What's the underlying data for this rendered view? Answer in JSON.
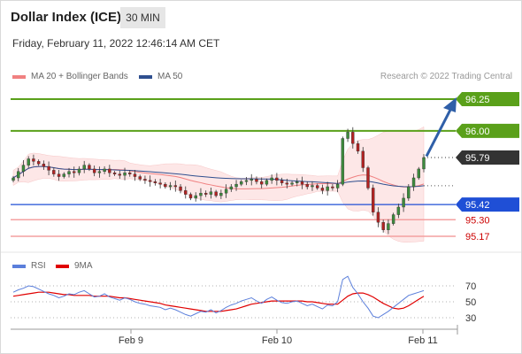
{
  "header": {
    "title": "Dollar Index (ICE)",
    "timeframe": "30 MIN",
    "datetime": "Friday, February 11, 2022 12:46:14 AM CET",
    "copyright": "Research © 2022 Trading Central"
  },
  "legend": {
    "ma20": {
      "label": "MA 20 + Bollinger Bands",
      "color": "#f08080"
    },
    "ma50": {
      "label": "MA 50",
      "color": "#2f4f8f"
    },
    "rsi": {
      "label": "RSI",
      "color": "#5b7fdb"
    },
    "rsi_ma": {
      "label": "9MA",
      "color": "#e00000"
    }
  },
  "chart_data": [
    {
      "type": "candlestick",
      "ylim": [
        95.1,
        96.32
      ],
      "current_price": {
        "value": "95.79",
        "color": "#333333"
      },
      "levels": [
        {
          "value": 96.25,
          "label": "96.25",
          "kind": "target",
          "color": "#5aa01a"
        },
        {
          "value": 96.0,
          "label": "96.00",
          "kind": "resistance",
          "color": "#5aa01a"
        },
        {
          "value": 95.42,
          "label": "95.42",
          "kind": "pivot",
          "color": "#1f4fd6"
        },
        {
          "value": 95.3,
          "label": "95.30",
          "kind": "support",
          "color": "#f4a0a0",
          "text_color": "#cc0000"
        },
        {
          "value": 95.17,
          "label": "95.17",
          "kind": "support",
          "color": "#f4a0a0",
          "text_color": "#cc0000"
        }
      ],
      "x_labels": [
        "Feb 9",
        "Feb 10",
        "Feb 11"
      ],
      "arrow": {
        "from": 95.8,
        "to": 96.25,
        "color": "#2f5fa8"
      },
      "close": [
        95.63,
        95.68,
        95.73,
        95.78,
        95.76,
        95.74,
        95.72,
        95.69,
        95.66,
        95.64,
        95.66,
        95.68,
        95.67,
        95.7,
        95.73,
        95.7,
        95.67,
        95.68,
        95.7,
        95.67,
        95.66,
        95.65,
        95.67,
        95.66,
        95.64,
        95.62,
        95.61,
        95.6,
        95.59,
        95.58,
        95.56,
        95.57,
        95.56,
        95.53,
        95.5,
        95.47,
        95.49,
        95.51,
        95.5,
        95.52,
        95.49,
        95.51,
        95.54,
        95.56,
        95.58,
        95.6,
        95.61,
        95.62,
        95.6,
        95.58,
        95.61,
        95.63,
        95.61,
        95.59,
        95.58,
        95.59,
        95.6,
        95.58,
        95.56,
        95.57,
        95.55,
        95.53,
        95.56,
        95.55,
        95.58,
        95.94,
        95.99,
        95.9,
        95.84,
        95.71,
        95.55,
        95.36,
        95.28,
        95.22,
        95.27,
        95.34,
        95.4,
        95.47,
        95.56,
        95.63,
        95.7,
        95.79
      ]
    },
    {
      "type": "line",
      "series": [
        {
          "name": "RSI"
        },
        {
          "name": "9MA"
        }
      ],
      "y_ticks": [
        70,
        50,
        30
      ],
      "ylim": [
        20,
        80
      ],
      "rsi": [
        62,
        65,
        67,
        70,
        69,
        66,
        63,
        60,
        58,
        55,
        57,
        60,
        59,
        62,
        64,
        60,
        56,
        57,
        60,
        56,
        54,
        52,
        55,
        53,
        50,
        48,
        47,
        45,
        44,
        43,
        40,
        42,
        40,
        37,
        34,
        32,
        35,
        38,
        37,
        40,
        36,
        39,
        43,
        46,
        48,
        51,
        53,
        55,
        51,
        48,
        53,
        56,
        52,
        49,
        48,
        50,
        51,
        48,
        45,
        47,
        44,
        41,
        46,
        45,
        50,
        78,
        82,
        68,
        60,
        50,
        42,
        32,
        30,
        34,
        38,
        43,
        48,
        53,
        58,
        60,
        62,
        64
      ],
      "rsi_ma": [
        57,
        58,
        59,
        60,
        61,
        62,
        62,
        62,
        61,
        60,
        59,
        59,
        58,
        58,
        58,
        58,
        57,
        57,
        57,
        57,
        56,
        55,
        55,
        54,
        53,
        52,
        51,
        50,
        49,
        48,
        46,
        45,
        44,
        43,
        42,
        41,
        40,
        39,
        38,
        38,
        38,
        38,
        39,
        40,
        41,
        43,
        45,
        47,
        48,
        49,
        50,
        51,
        51,
        51,
        51,
        51,
        51,
        51,
        50,
        50,
        49,
        48,
        47,
        47,
        47,
        52,
        57,
        60,
        61,
        61,
        59,
        56,
        52,
        48,
        45,
        42,
        41,
        42,
        45,
        49,
        53,
        57
      ]
    }
  ]
}
